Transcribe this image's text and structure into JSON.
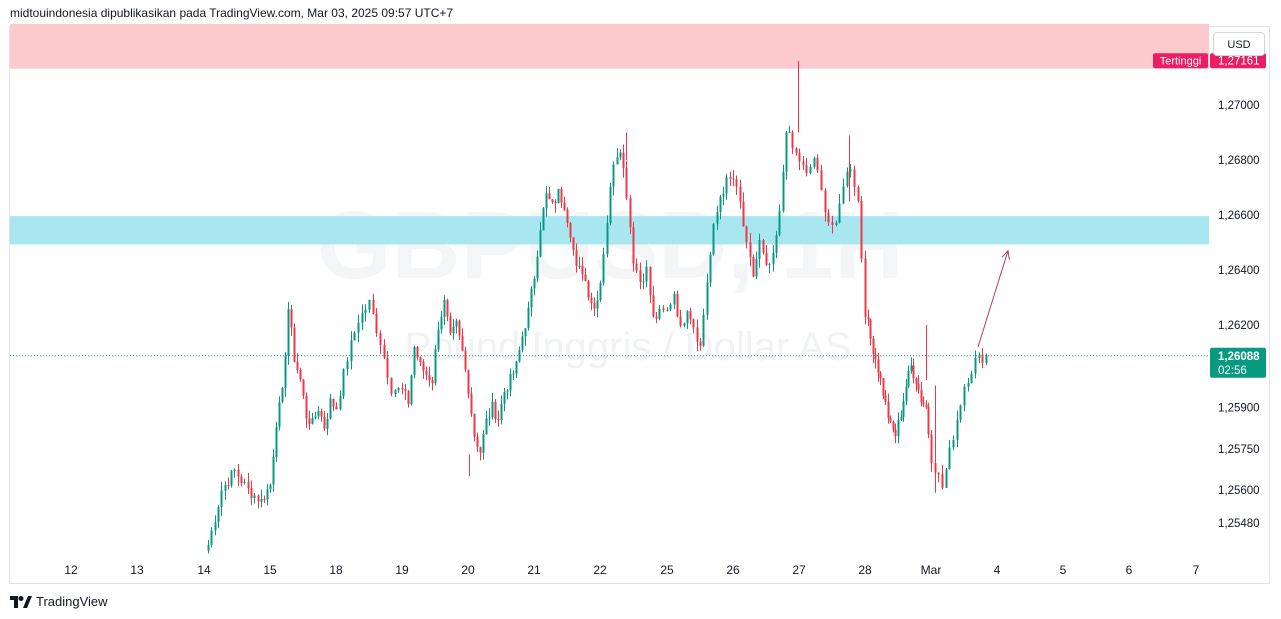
{
  "header": {
    "attribution": "midtouindonesia dipublikasikan pada TradingView.com, Mar 03, 2025 09:57 UTC+7"
  },
  "footer": {
    "brand": "TradingView",
    "logo_icon": "tradingview-logo-icon"
  },
  "currency_button": "USD",
  "watermark": {
    "symbol": "GBPUSD",
    "timeframe": "1H",
    "description": "Pound Inggris / Dollar AS"
  },
  "colors": {
    "up": "#089981",
    "down": "#f23645",
    "supply_zone": "#fcc9cd",
    "demand_zone": "#a8e6f0",
    "highest_label": "#e91e63",
    "price_label": "#089981",
    "arrow": "#b03a6e"
  },
  "chart_data": {
    "type": "candlestick",
    "symbol": "GBPUSD",
    "timeframe": "1H",
    "x_tick_labels": [
      "12",
      "13",
      "14",
      "15",
      "18",
      "19",
      "20",
      "21",
      "22",
      "25",
      "26",
      "27",
      "28",
      "Mar",
      "4",
      "5",
      "6",
      "7"
    ],
    "y_tick_labels": [
      "1,27000",
      "1,26800",
      "1,26600",
      "1,26400",
      "1,26200",
      "1,25900",
      "1,25750",
      "1,25600",
      "1,25480"
    ],
    "y_ticks": [
      1.27,
      1.268,
      1.266,
      1.264,
      1.262,
      1.259,
      1.2575,
      1.256,
      1.2548
    ],
    "ylim": [
      1.2537,
      1.2738
    ],
    "highest": {
      "label": "Tertinggi",
      "value_label": "1,27161",
      "value": 1.27161
    },
    "last_price": {
      "value_label": "1,26088",
      "value": 1.26088,
      "countdown": "02:56"
    },
    "zones": [
      {
        "type": "supply",
        "low": 1.27132,
        "high": 1.27295
      },
      {
        "type": "demand",
        "low": 1.26493,
        "high": 1.26596
      }
    ],
    "projection_arrow": {
      "from": {
        "x": "Mar",
        "value": 1.2612
      },
      "to": {
        "x": "4",
        "value": 1.2647
      }
    },
    "path": [
      [
        "14",
        1.254
      ],
      [
        "14",
        1.256
      ],
      [
        "14",
        1.2567
      ],
      [
        "14",
        1.256
      ],
      [
        "14",
        1.2556
      ],
      [
        "15",
        1.2562
      ],
      [
        "15",
        1.2585
      ],
      [
        "15",
        1.2595
      ],
      [
        "15",
        1.2626
      ],
      [
        "15",
        1.2608
      ],
      [
        "15",
        1.26
      ],
      [
        "15",
        1.2587
      ],
      [
        "15",
        1.2584
      ],
      [
        "15",
        1.259
      ],
      [
        "15",
        1.2583
      ],
      [
        "15",
        1.2592
      ],
      [
        "18",
        1.259
      ],
      [
        "18",
        1.2608
      ],
      [
        "18",
        1.2622
      ],
      [
        "18",
        1.2628
      ],
      [
        "18",
        1.2614
      ],
      [
        "18",
        1.2597
      ],
      [
        "19",
        1.2596
      ],
      [
        "19",
        1.2592
      ],
      [
        "19",
        1.2612
      ],
      [
        "19",
        1.2605
      ],
      [
        "19",
        1.2602
      ],
      [
        "19",
        1.26
      ],
      [
        "19",
        1.262
      ],
      [
        "19",
        1.2628
      ],
      [
        "19",
        1.2615
      ],
      [
        "19",
        1.262
      ],
      [
        "19",
        1.261
      ],
      [
        "20",
        1.2597
      ],
      [
        "20",
        1.258
      ],
      [
        "20",
        1.2574
      ],
      [
        "20",
        1.2585
      ],
      [
        "20",
        1.259
      ],
      [
        "20",
        1.2586
      ],
      [
        "20",
        1.2596
      ],
      [
        "20",
        1.26
      ],
      [
        "20",
        1.2605
      ],
      [
        "20",
        1.2616
      ],
      [
        "20",
        1.2625
      ],
      [
        "21",
        1.2638
      ],
      [
        "21",
        1.2656
      ],
      [
        "21",
        1.2667
      ],
      [
        "21",
        1.2663
      ],
      [
        "21",
        1.2668
      ],
      [
        "21",
        1.2664
      ],
      [
        "21",
        1.2654
      ],
      [
        "21",
        1.264
      ],
      [
        "21",
        1.264
      ],
      [
        "21",
        1.2632
      ],
      [
        "21",
        1.2626
      ],
      [
        "22",
        1.2636
      ],
      [
        "22",
        1.2658
      ],
      [
        "22",
        1.268
      ],
      [
        "22",
        1.2685
      ],
      [
        "22",
        1.2668
      ],
      [
        "22",
        1.2644
      ],
      [
        "22",
        1.2636
      ],
      [
        "22",
        1.264
      ],
      [
        "22",
        1.2622
      ],
      [
        "22",
        1.2624
      ],
      [
        "25",
        1.2625
      ],
      [
        "25",
        1.2632
      ],
      [
        "25",
        1.2618
      ],
      [
        "25",
        1.2627
      ],
      [
        "25",
        1.262
      ],
      [
        "25",
        1.2612
      ],
      [
        "25",
        1.2636
      ],
      [
        "25",
        1.2655
      ],
      [
        "25",
        1.2667
      ],
      [
        "25",
        1.2672
      ],
      [
        "26",
        1.2673
      ],
      [
        "26",
        1.2664
      ],
      [
        "26",
        1.2648
      ],
      [
        "26",
        1.2638
      ],
      [
        "26",
        1.265
      ],
      [
        "26",
        1.264
      ],
      [
        "26",
        1.2644
      ],
      [
        "26",
        1.266
      ],
      [
        "26",
        1.2692
      ],
      [
        "26",
        1.2684
      ],
      [
        "27",
        1.268
      ],
      [
        "27",
        1.2674
      ],
      [
        "27",
        1.2681
      ],
      [
        "27",
        1.2668
      ],
      [
        "27",
        1.2658
      ],
      [
        "27",
        1.2655
      ],
      [
        "27",
        1.2672
      ],
      [
        "27",
        1.2678
      ],
      [
        "27",
        1.2665
      ],
      [
        "28",
        1.2625
      ],
      [
        "28",
        1.2615
      ],
      [
        "28",
        1.2608
      ],
      [
        "28",
        1.26
      ],
      [
        "28",
        1.2591
      ],
      [
        "28",
        1.2583
      ],
      [
        "28",
        1.258
      ],
      [
        "28",
        1.2588
      ],
      [
        "28",
        1.2598
      ],
      [
        "28",
        1.2605
      ],
      [
        "28",
        1.26
      ],
      [
        "28",
        1.2593
      ],
      [
        "28",
        1.259
      ],
      [
        "Mar",
        1.2572
      ],
      [
        "Mar",
        1.2561
      ],
      [
        "Mar",
        1.258
      ],
      [
        "Mar",
        1.2598
      ],
      [
        "Mar",
        1.2607
      ],
      [
        "Mar",
        1.2609
      ]
    ]
  }
}
